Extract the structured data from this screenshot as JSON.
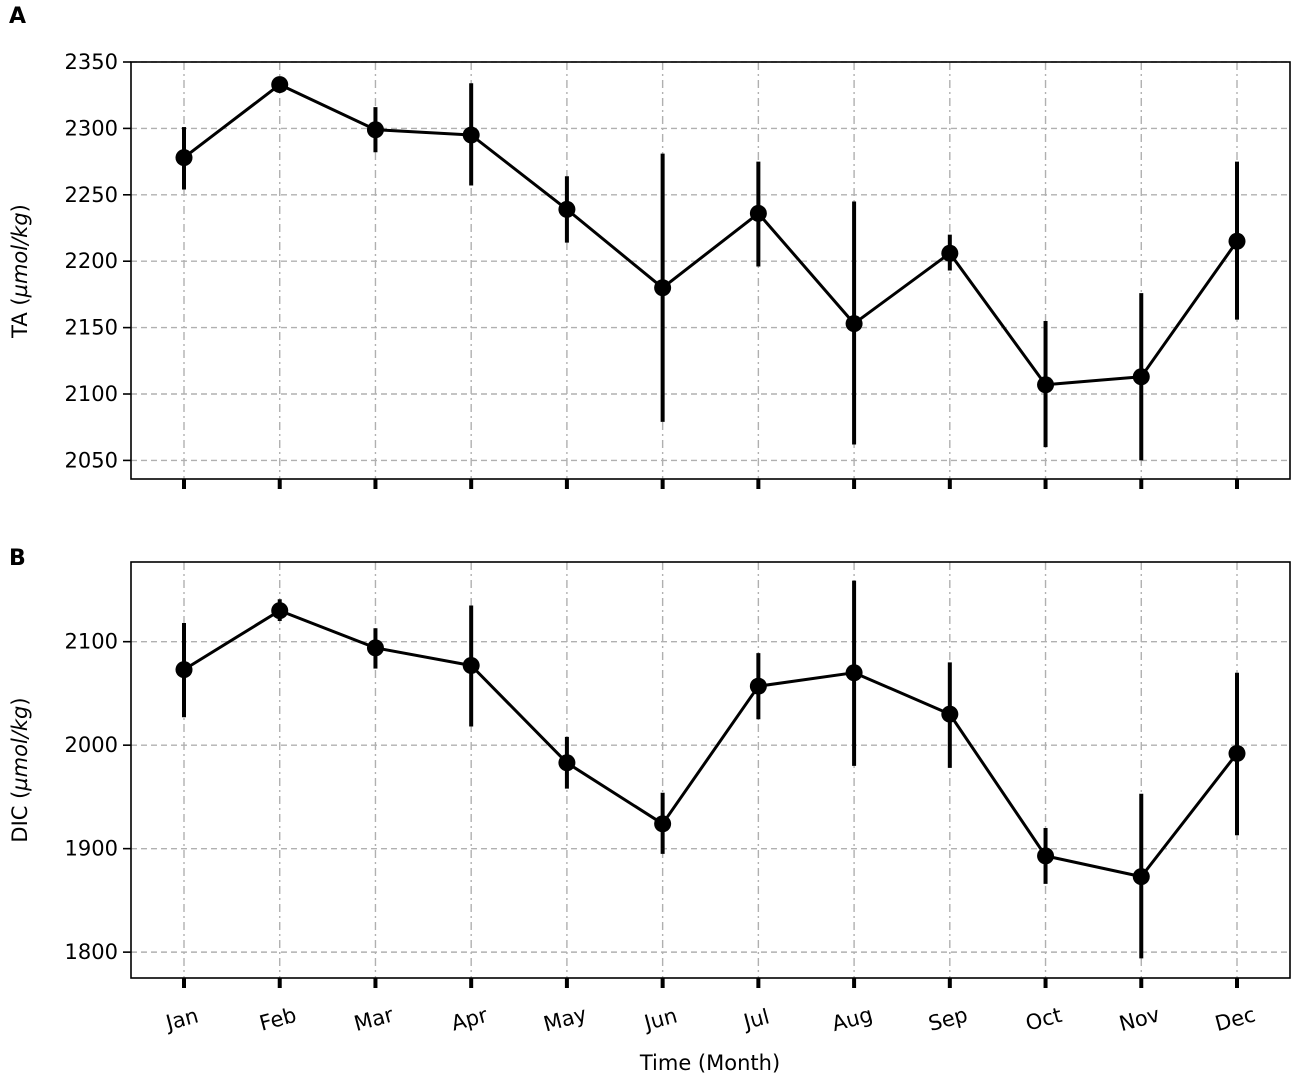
{
  "chart_data": [
    {
      "type": "line",
      "panel_label": "A",
      "ylabel_prefix": "TA (",
      "ylabel_unit": "µmol/kg",
      "ylabel_suffix": ")",
      "categories": [
        "Jan",
        "Feb",
        "Mar",
        "Apr",
        "May",
        "Jun",
        "Jul",
        "Aug",
        "Sep",
        "Oct",
        "Nov",
        "Dec"
      ],
      "series": [
        {
          "values": [
            2278,
            2333,
            2299,
            2295,
            2239,
            2180,
            2236,
            2153,
            2206,
            2107,
            2113,
            2215
          ],
          "err_low": [
            2254,
            2329,
            2282,
            2257,
            2214,
            2079,
            2196,
            2062,
            2193,
            2060,
            2050,
            2156
          ],
          "err_high": [
            2301,
            2335,
            2316,
            2334,
            2264,
            2281,
            2275,
            2245,
            2220,
            2155,
            2176,
            2275
          ]
        }
      ],
      "ylim": [
        2036,
        2350
      ],
      "yticks": [
        2050,
        2100,
        2150,
        2200,
        2250,
        2300,
        2350
      ],
      "xtick_labels_shown": false,
      "grid": true,
      "colors": {
        "line": "#000000",
        "grid": "#b0b0b0"
      }
    },
    {
      "type": "line",
      "panel_label": "B",
      "ylabel_prefix": "DIC (",
      "ylabel_unit": "µmol/kg",
      "ylabel_suffix": ")",
      "xlabel": "Time (Month)",
      "categories": [
        "Jan",
        "Feb",
        "Mar",
        "Apr",
        "May",
        "Jun",
        "Jul",
        "Aug",
        "Sep",
        "Oct",
        "Nov",
        "Dec"
      ],
      "series": [
        {
          "values": [
            2073,
            2130,
            2094,
            2077,
            1983,
            1924,
            2057,
            2070,
            2030,
            1893,
            1873,
            1992
          ],
          "err_low": [
            2027,
            2120,
            2074,
            2018,
            1958,
            1895,
            2025,
            1980,
            1978,
            1866,
            1794,
            1913
          ],
          "err_high": [
            2118,
            2141,
            2113,
            2135,
            2008,
            1954,
            2089,
            2159,
            2080,
            1920,
            1953,
            2070
          ]
        }
      ],
      "ylim": [
        1775,
        2177
      ],
      "yticks": [
        1800,
        1900,
        2000,
        2100
      ],
      "xtick_labels_shown": true,
      "grid": true,
      "colors": {
        "line": "#000000",
        "grid": "#b0b0b0"
      }
    }
  ]
}
